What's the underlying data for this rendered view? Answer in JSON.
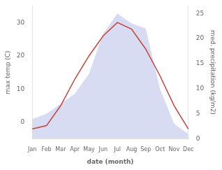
{
  "chart_data": {
    "type": "line",
    "categories": [
      "Jan",
      "Feb",
      "Mar",
      "Apr",
      "May",
      "Jun",
      "Jul",
      "Aug",
      "Sep",
      "Oct",
      "Nov",
      "Dec"
    ],
    "series": [
      {
        "type": "area",
        "color": "#b8bfe8",
        "axis": "y2",
        "values": [
          4,
          5,
          7,
          9,
          13,
          21,
          25,
          23,
          22,
          10,
          3,
          1
        ]
      },
      {
        "type": "line",
        "color": "#c8413a",
        "values": [
          -2,
          -1,
          5,
          13,
          20,
          26,
          30,
          28,
          22,
          14,
          5,
          -2
        ]
      }
    ],
    "xlabel": "date (month)",
    "ylabel": "max temp (C)",
    "y2label": "med. precipitation (kg/m2)",
    "ylim": [
      -5,
      35
    ],
    "yticks": [
      0,
      10,
      20,
      30
    ],
    "y2lim": [
      0,
      26.5
    ],
    "y2ticks": [
      0,
      5,
      10,
      15,
      20,
      25
    ],
    "grid": false
  }
}
